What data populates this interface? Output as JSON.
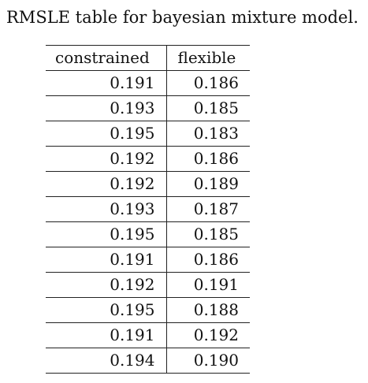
{
  "caption": "RMSLE table for bayesian mixture model.",
  "table": {
    "headers": [
      "constrained",
      "flexible"
    ],
    "rows": [
      [
        "0.191",
        "0.186"
      ],
      [
        "0.193",
        "0.185"
      ],
      [
        "0.195",
        "0.183"
      ],
      [
        "0.192",
        "0.186"
      ],
      [
        "0.192",
        "0.189"
      ],
      [
        "0.193",
        "0.187"
      ],
      [
        "0.195",
        "0.185"
      ],
      [
        "0.191",
        "0.186"
      ],
      [
        "0.192",
        "0.191"
      ],
      [
        "0.195",
        "0.188"
      ],
      [
        "0.191",
        "0.192"
      ],
      [
        "0.194",
        "0.190"
      ]
    ]
  }
}
